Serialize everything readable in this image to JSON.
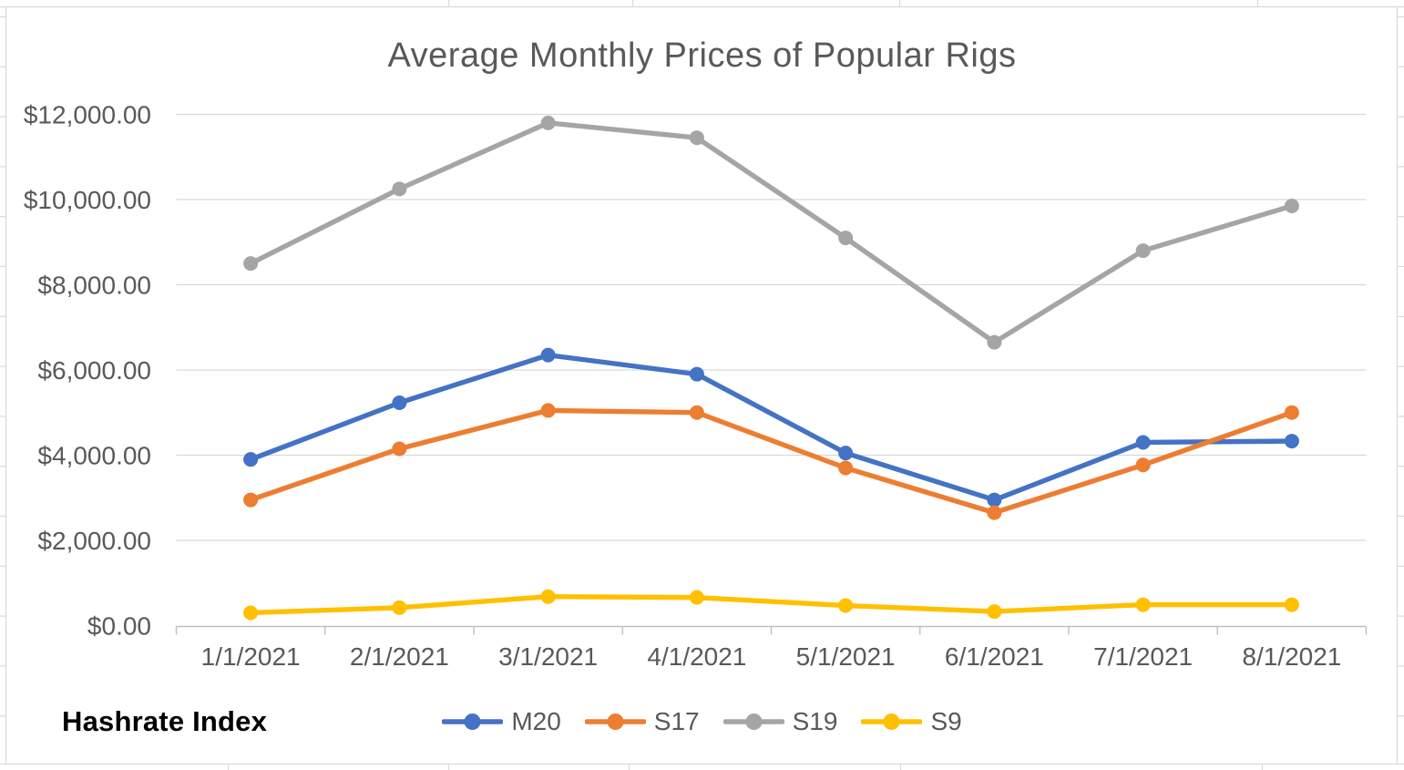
{
  "brand": "Hashrate Index",
  "appearance": {
    "background": "#FFFFFF",
    "text_color": "#595959",
    "brand_color": "#000000",
    "gridline_color": "#D9D9D9",
    "axis_color": "#BFBFBF",
    "spreadsheet_line_color": "#D9D9D9"
  },
  "chart_data": {
    "type": "line",
    "title": "Average Monthly Prices of Popular Rigs",
    "xlabel": "",
    "ylabel": "",
    "grid": true,
    "legend_position": "bottom",
    "marker": "circle",
    "categories": [
      "1/1/2021",
      "2/1/2021",
      "3/1/2021",
      "4/1/2021",
      "5/1/2021",
      "6/1/2021",
      "7/1/2021",
      "8/1/2021"
    ],
    "series": [
      {
        "name": "M20",
        "color": "#4472C4",
        "values": [
          3900,
          5230,
          6350,
          5900,
          4050,
          2950,
          4300,
          4330
        ]
      },
      {
        "name": "S17",
        "color": "#ED7D31",
        "values": [
          2950,
          4150,
          5050,
          5000,
          3700,
          2650,
          3770,
          5000
        ]
      },
      {
        "name": "S19",
        "color": "#A5A5A5",
        "values": [
          8500,
          10250,
          11800,
          11450,
          9100,
          6650,
          8800,
          9850
        ]
      },
      {
        "name": "S9",
        "color": "#FFC000",
        "values": [
          300,
          420,
          680,
          660,
          470,
          330,
          490,
          490
        ]
      }
    ],
    "ylim": [
      0,
      12000
    ],
    "ytick_step": 2000,
    "ytick_labels": [
      "$0.00",
      "$2,000.00",
      "$4,000.00",
      "$6,000.00",
      "$8,000.00",
      "$10,000.00",
      "$12,000.00"
    ]
  }
}
